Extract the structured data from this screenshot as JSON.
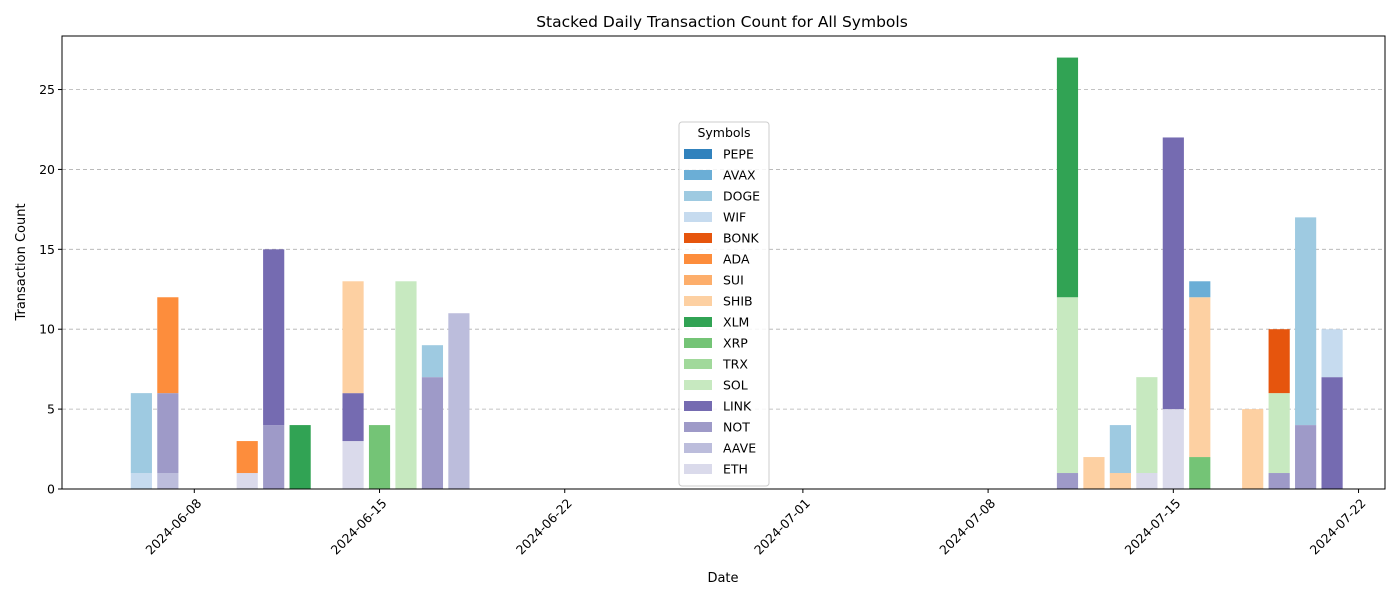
{
  "chart_data": {
    "type": "bar",
    "stacked": true,
    "title": "Stacked Daily Transaction Count for All Symbols",
    "xlabel": "Date",
    "ylabel": "Transaction Count",
    "ylim": [
      0,
      28.35
    ],
    "yticks": [
      0,
      5,
      10,
      15,
      20,
      25
    ],
    "xlim": [
      "2024-06-03",
      "2024-07-23"
    ],
    "xticks": [
      "2024-06-08",
      "2024-06-15",
      "2024-06-22",
      "2024-07-01",
      "2024-07-08",
      "2024-07-15",
      "2024-07-22"
    ],
    "grid": "y-dashed",
    "legend_title": "Symbols",
    "legend_placement": "center",
    "series": [
      {
        "name": "ETH",
        "color": "#dadaeb",
        "points": [
          [
            "2024-06-07",
            0
          ],
          [
            "2024-06-10",
            1
          ],
          [
            "2024-06-14",
            3
          ],
          [
            "2024-07-14",
            1
          ],
          [
            "2024-07-15",
            5
          ]
        ]
      },
      {
        "name": "AAVE",
        "color": "#bcbddc",
        "points": [
          [
            "2024-06-07",
            1
          ],
          [
            "2024-06-18",
            11
          ]
        ]
      },
      {
        "name": "NOT",
        "color": "#9e9ac8",
        "points": [
          [
            "2024-06-07",
            5
          ],
          [
            "2024-06-11",
            4
          ],
          [
            "2024-06-17",
            7
          ],
          [
            "2024-07-11",
            1
          ],
          [
            "2024-07-19",
            1
          ],
          [
            "2024-07-20",
            4
          ]
        ]
      },
      {
        "name": "LINK",
        "color": "#756bb1",
        "points": [
          [
            "2024-06-11",
            11
          ],
          [
            "2024-06-14",
            3
          ],
          [
            "2024-07-15",
            17
          ],
          [
            "2024-07-21",
            7
          ]
        ]
      },
      {
        "name": "SOL",
        "color": "#c7e9c0",
        "points": [
          [
            "2024-06-16",
            13
          ],
          [
            "2024-07-11",
            11
          ],
          [
            "2024-07-14",
            6
          ],
          [
            "2024-07-19",
            5
          ]
        ]
      },
      {
        "name": "TRX",
        "color": "#a1d99b",
        "points": []
      },
      {
        "name": "XRP",
        "color": "#74c476",
        "points": [
          [
            "2024-06-15",
            4
          ],
          [
            "2024-07-16",
            2
          ]
        ]
      },
      {
        "name": "XLM",
        "color": "#31a354",
        "points": [
          [
            "2024-06-12",
            4
          ],
          [
            "2024-07-11",
            15
          ]
        ]
      },
      {
        "name": "SHIB",
        "color": "#fdd0a2",
        "points": [
          [
            "2024-06-14",
            7
          ],
          [
            "2024-07-12",
            2
          ],
          [
            "2024-07-13",
            1
          ],
          [
            "2024-07-16",
            10
          ],
          [
            "2024-07-18",
            5
          ]
        ]
      },
      {
        "name": "SUI",
        "color": "#fdae6b",
        "points": []
      },
      {
        "name": "ADA",
        "color": "#fd8d3c",
        "points": [
          [
            "2024-06-07",
            6
          ],
          [
            "2024-06-10",
            2
          ]
        ]
      },
      {
        "name": "BONK",
        "color": "#e6550d",
        "points": [
          [
            "2024-07-19",
            4
          ]
        ]
      },
      {
        "name": "WIF",
        "color": "#c6dbef",
        "points": [
          [
            "2024-06-06",
            1
          ],
          [
            "2024-07-21",
            3
          ]
        ]
      },
      {
        "name": "DOGE",
        "color": "#9ecae1",
        "points": [
          [
            "2024-06-06",
            5
          ],
          [
            "2024-06-17",
            2
          ],
          [
            "2024-07-13",
            3
          ],
          [
            "2024-07-20",
            13
          ]
        ]
      },
      {
        "name": "AVAX",
        "color": "#6baed6",
        "points": [
          [
            "2024-07-16",
            1
          ]
        ]
      },
      {
        "name": "PEPE",
        "color": "#3182bd",
        "points": []
      }
    ]
  }
}
